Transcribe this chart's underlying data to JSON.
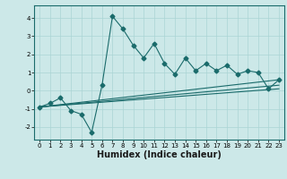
{
  "xlabel": "Humidex (Indice chaleur)",
  "ylabel": "",
  "bg_color": "#cce8e8",
  "line_color": "#1a6b6b",
  "xlim": [
    -0.5,
    23.5
  ],
  "ylim": [
    -2.7,
    4.7
  ],
  "xticks": [
    0,
    1,
    2,
    3,
    4,
    5,
    6,
    7,
    8,
    9,
    10,
    11,
    12,
    13,
    14,
    15,
    16,
    17,
    18,
    19,
    20,
    21,
    22,
    23
  ],
  "yticks": [
    -2,
    -1,
    0,
    1,
    2,
    3,
    4
  ],
  "main_x": [
    0,
    1,
    2,
    3,
    4,
    5,
    6,
    7,
    8,
    9,
    10,
    11,
    12,
    13,
    14,
    15,
    16,
    17,
    18,
    19,
    20,
    21,
    22,
    23
  ],
  "main_y": [
    -0.9,
    -0.7,
    -0.4,
    -1.1,
    -1.3,
    -2.3,
    0.3,
    4.1,
    3.4,
    2.5,
    1.8,
    2.6,
    1.5,
    0.9,
    1.8,
    1.1,
    1.5,
    1.1,
    1.4,
    0.9,
    1.1,
    1.0,
    0.1,
    0.6
  ],
  "line1_x": [
    0,
    23
  ],
  "line1_y": [
    -0.9,
    0.6
  ],
  "line2_x": [
    0,
    23
  ],
  "line2_y": [
    -0.9,
    0.3
  ],
  "line3_x": [
    0,
    23
  ],
  "line3_y": [
    -0.9,
    0.1
  ],
  "grid_color": "#aad4d4",
  "xlabel_fontsize": 7,
  "tick_fontsize": 5,
  "linewidth": 0.8,
  "marker_size": 2.5
}
